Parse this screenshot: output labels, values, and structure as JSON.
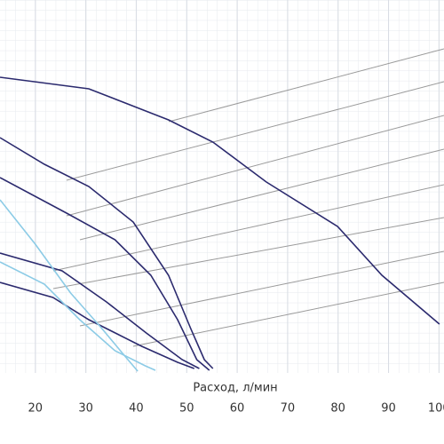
{
  "chart_data": {
    "type": "line",
    "x_label": "Расход, л/мин",
    "xlim": [
      13,
      101
    ],
    "ylim": [
      0,
      42
    ],
    "xticks": [
      20,
      30,
      40,
      50,
      60,
      70,
      80,
      90,
      100
    ],
    "grid": true,
    "series": [
      {
        "color": "#2b2a6e",
        "x": [
          13,
          30.6,
          46.4,
          55.2,
          65.8,
          79.9,
          88.7,
          100.1
        ],
        "values": [
          33.3,
          32,
          28.5,
          26,
          21.5,
          16.5,
          11,
          5.5
        ]
      },
      {
        "color": "#2b2a6e",
        "x": [
          13,
          21.8,
          30.6,
          39.4,
          46.4,
          50.8,
          53.5,
          55.2
        ],
        "values": [
          26.5,
          23.5,
          21,
          17,
          11,
          5,
          1.5,
          0.5
        ]
      },
      {
        "color": "#2b2a6e",
        "x": [
          13,
          26.2,
          35.8,
          42.9,
          48.2,
          52,
          54.5
        ],
        "values": [
          22,
          18,
          15,
          11,
          6,
          1.5,
          0.3
        ]
      },
      {
        "color": "#2b2a6e",
        "x": [
          13,
          25.3,
          34.1,
          42,
          49.1,
          52.5
        ],
        "values": [
          13.5,
          11.5,
          8,
          4.5,
          1.5,
          0.5
        ]
      },
      {
        "color": "#2b2a6e",
        "x": [
          13,
          23.5,
          30.6,
          41.1,
          48.2,
          51.5
        ],
        "values": [
          10.2,
          8.5,
          6,
          3,
          1.2,
          0.5
        ]
      },
      {
        "color": "#8ccbe6",
        "x": [
          13,
          20,
          27,
          33.2,
          37.6,
          40.3
        ],
        "values": [
          19.5,
          14.5,
          9,
          5,
          2,
          0.2
        ]
      },
      {
        "color": "#8ccbe6",
        "x": [
          13,
          21.8,
          28.8,
          35.8,
          41.8,
          43.8
        ],
        "values": [
          12.5,
          10,
          6,
          2.5,
          0.8,
          0.3
        ]
      }
    ]
  }
}
